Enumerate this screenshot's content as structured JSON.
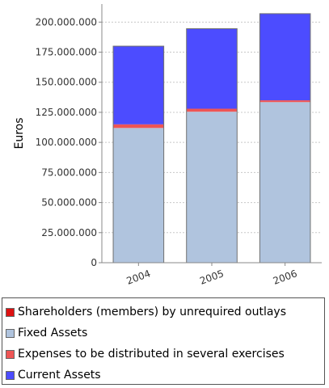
{
  "chart_data": {
    "type": "bar",
    "stacked": true,
    "categories": [
      "2004",
      "2005",
      "2006"
    ],
    "ylabel": "Euros",
    "ylim": [
      0,
      215000000
    ],
    "yticks": [
      0,
      25000000,
      50000000,
      75000000,
      100000000,
      125000000,
      150000000,
      175000000,
      200000000
    ],
    "ytick_labels": [
      "0",
      "25.000.000",
      "50.000.000",
      "75.000.000",
      "100.000.000",
      "125.000.000",
      "150.000.000",
      "175.000.000",
      "200.000.000"
    ],
    "grid": true,
    "legend_position": "bottom",
    "series": [
      {
        "name": "Shareholders (members) by unrequired outlays",
        "color": "#dd1111",
        "values": [
          0,
          0,
          0
        ]
      },
      {
        "name": "Fixed Assets",
        "color": "#b0c4de",
        "values": [
          112000000,
          125500000,
          133500000
        ]
      },
      {
        "name": "Expenses to be distributed in several exercises",
        "color": "#ee5555",
        "values": [
          3000000,
          2500000,
          1500000
        ]
      },
      {
        "name": "Current Assets",
        "color": "#4c4cff",
        "values": [
          65000000,
          66500000,
          72000000
        ]
      }
    ]
  }
}
